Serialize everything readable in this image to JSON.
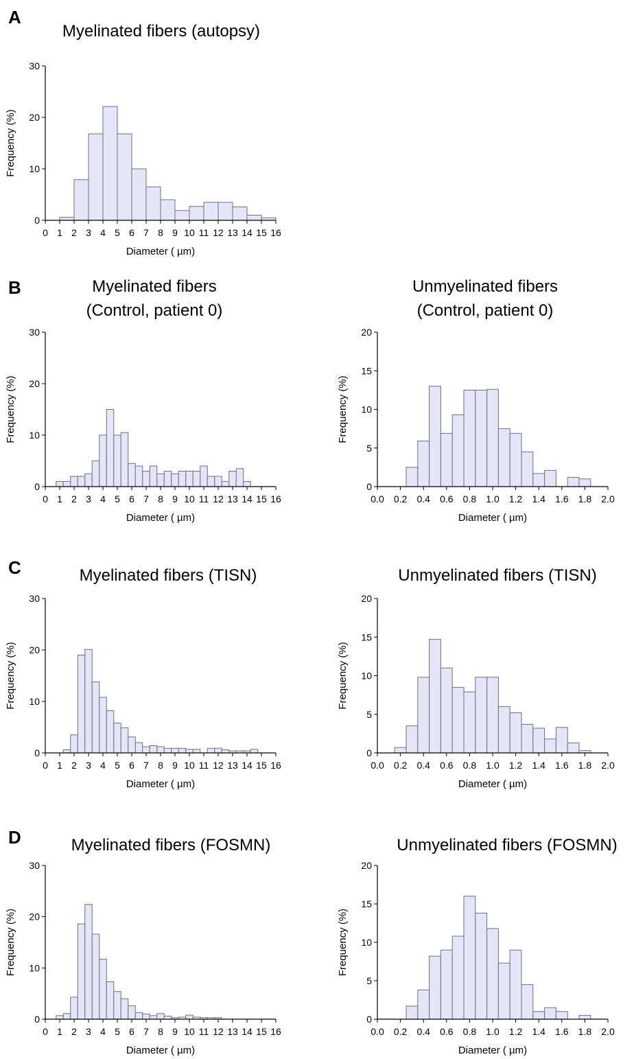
{
  "panel_labels": [
    "A",
    "B",
    "C",
    "D"
  ],
  "chart_data": [
    {
      "type": "bar",
      "panel": "A",
      "title_lines": [
        "Myelinated fibers (autopsy)"
      ],
      "xlabel": "Diameter ( µm)",
      "ylabel": "Frequency (%)",
      "xlim": [
        0,
        16
      ],
      "ylim": [
        0,
        30
      ],
      "xticks": [
        "0",
        "1",
        "2",
        "3",
        "4",
        "5",
        "6",
        "7",
        "8",
        "9",
        "10",
        "11",
        "12",
        "13",
        "14",
        "15",
        "16"
      ],
      "yticks": [
        "0",
        "10",
        "20",
        "30"
      ],
      "bin_width": 1,
      "bin_starts": [
        1,
        2,
        3,
        4,
        5,
        6,
        7,
        8,
        9,
        10,
        11,
        12,
        13,
        14,
        15
      ],
      "values": [
        0.6,
        7.9,
        16.8,
        22.1,
        16.8,
        10.0,
        6.5,
        4.0,
        1.9,
        2.7,
        3.5,
        3.5,
        2.6,
        1.0,
        0.5
      ],
      "grid": false
    },
    {
      "type": "bar",
      "panel": "B",
      "title_lines": [
        "Myelinated fibers",
        "(Control, patient 0)"
      ],
      "xlabel": "Diameter ( µm)",
      "ylabel": "Frequency (%)",
      "xlim": [
        0,
        16
      ],
      "ylim": [
        0,
        30
      ],
      "xticks": [
        "0",
        "1",
        "2",
        "3",
        "4",
        "5",
        "6",
        "7",
        "8",
        "9",
        "10",
        "11",
        "12",
        "13",
        "14",
        "15",
        "16"
      ],
      "yticks": [
        "0",
        "10",
        "20",
        "30"
      ],
      "bin_width": 0.5,
      "bin_starts": [
        0.75,
        1.25,
        1.75,
        2.25,
        2.75,
        3.25,
        3.75,
        4.25,
        4.75,
        5.25,
        5.75,
        6.25,
        6.75,
        7.25,
        7.75,
        8.25,
        8.75,
        9.25,
        9.75,
        10.25,
        10.75,
        11.25,
        11.75,
        12.25,
        12.75,
        13.25,
        13.75
      ],
      "values": [
        1.0,
        1.0,
        2.0,
        2.0,
        2.5,
        5.0,
        10.0,
        15.0,
        10.0,
        10.5,
        4.5,
        4.0,
        3.0,
        4.0,
        2.5,
        3.0,
        2.5,
        3.0,
        3.0,
        3.0,
        4.0,
        2.0,
        2.0,
        1.0,
        3.0,
        3.5,
        1.0
      ],
      "grid": false
    },
    {
      "type": "bar",
      "panel": "B",
      "title_lines": [
        "Unmyelinated fibers",
        "(Control, patient 0)"
      ],
      "xlabel": "Diameter ( µm)",
      "ylabel": "Frequency (%)",
      "xlim": [
        0,
        2.0
      ],
      "ylim": [
        0,
        20
      ],
      "xticks": [
        "0.0",
        "0.2",
        "0.4",
        "0.6",
        "0.8",
        "1.0",
        "1.2",
        "1.4",
        "1.6",
        "1.8",
        "2.0"
      ],
      "yticks": [
        "0",
        "5",
        "10",
        "15",
        "20"
      ],
      "bin_width": 0.1,
      "bin_starts": [
        0.25,
        0.35,
        0.45,
        0.55,
        0.65,
        0.75,
        0.85,
        0.95,
        1.05,
        1.15,
        1.25,
        1.35,
        1.45,
        1.55,
        1.65,
        1.75
      ],
      "values": [
        2.5,
        5.9,
        13.0,
        6.9,
        9.3,
        12.5,
        12.5,
        12.6,
        7.5,
        6.9,
        4.5,
        1.7,
        2.1,
        0,
        1.2,
        1.0
      ],
      "grid": false
    },
    {
      "type": "bar",
      "panel": "C",
      "title_lines": [
        "Myelinated fibers (TISN)"
      ],
      "xlabel": "Diameter ( µm)",
      "ylabel": "Frequency (%)",
      "xlim": [
        0,
        16
      ],
      "ylim": [
        0,
        30
      ],
      "xticks": [
        "0",
        "1",
        "2",
        "3",
        "4",
        "5",
        "6",
        "7",
        "8",
        "9",
        "10",
        "11",
        "12",
        "13",
        "14",
        "15",
        "16"
      ],
      "yticks": [
        "0",
        "10",
        "20",
        "30"
      ],
      "bin_width": 0.5,
      "bin_starts": [
        1.25,
        1.75,
        2.25,
        2.75,
        3.25,
        3.75,
        4.25,
        4.75,
        5.25,
        5.75,
        6.25,
        6.75,
        7.25,
        7.75,
        8.25,
        8.75,
        9.25,
        9.75,
        10.25,
        10.75,
        11.25,
        11.75,
        12.25,
        12.75,
        13.25,
        13.75,
        14.25
      ],
      "values": [
        0.6,
        3.5,
        19.0,
        20.1,
        13.8,
        10.8,
        8.2,
        5.8,
        4.9,
        3.1,
        2.0,
        1.2,
        1.4,
        1.2,
        0.9,
        0.9,
        0.9,
        0.7,
        0.7,
        0,
        0.9,
        0.9,
        0.6,
        0.4,
        0.4,
        0.4,
        0.7
      ],
      "grid": false
    },
    {
      "type": "bar",
      "panel": "C",
      "title_lines": [
        "Unmyelinated fibers (TISN)"
      ],
      "xlabel": "Diameter ( µm)",
      "ylabel": "Frequency (%)",
      "xlim": [
        0,
        2.0
      ],
      "ylim": [
        0,
        20
      ],
      "xticks": [
        "0.0",
        "0.2",
        "0.4",
        "0.6",
        "0.8",
        "1.0",
        "1.2",
        "1.4",
        "1.6",
        "1.8",
        "2.0"
      ],
      "yticks": [
        "0",
        "5",
        "10",
        "15",
        "20"
      ],
      "bin_width": 0.1,
      "bin_starts": [
        0.15,
        0.25,
        0.35,
        0.45,
        0.55,
        0.65,
        0.75,
        0.85,
        0.95,
        1.05,
        1.15,
        1.25,
        1.35,
        1.45,
        1.55,
        1.65,
        1.75
      ],
      "values": [
        0.7,
        3.5,
        9.8,
        14.7,
        11.0,
        8.5,
        7.9,
        9.8,
        9.8,
        6.0,
        5.2,
        3.7,
        3.2,
        1.8,
        3.3,
        1.3,
        0.3
      ],
      "grid": false
    },
    {
      "type": "bar",
      "panel": "D",
      "title_lines": [
        "Myelinated fibers (FOSMN)"
      ],
      "xlabel": "Diameter ( µm)",
      "ylabel": "Frequency (%)",
      "xlim": [
        0,
        16
      ],
      "ylim": [
        0,
        30
      ],
      "xticks": [
        "0",
        "1",
        "2",
        "3",
        "4",
        "5",
        "6",
        "7",
        "8",
        "9",
        "10",
        "11",
        "12",
        "13",
        "14",
        "15",
        "16"
      ],
      "yticks": [
        "0",
        "10",
        "20",
        "30"
      ],
      "bin_width": 0.5,
      "bin_starts": [
        0.75,
        1.25,
        1.75,
        2.25,
        2.75,
        3.25,
        3.75,
        4.25,
        4.75,
        5.25,
        5.75,
        6.25,
        6.75,
        7.25,
        7.75,
        8.25,
        8.75,
        9.25,
        9.75,
        10.25,
        10.75,
        11.25,
        11.75
      ],
      "values": [
        0.7,
        1.1,
        4.3,
        18.6,
        22.4,
        16.6,
        11.7,
        7.3,
        5.4,
        4.0,
        2.6,
        1.3,
        1.0,
        0.7,
        1.1,
        0.6,
        0.3,
        0.4,
        0.8,
        0.4,
        0.3,
        0.3,
        0.3
      ],
      "grid": false
    },
    {
      "type": "bar",
      "panel": "D",
      "title_lines": [
        "Unmyelinated fibers (FOSMN)"
      ],
      "xlabel": "Diameter ( µm)",
      "ylabel": "Frequency (%)",
      "xlim": [
        0,
        2.0
      ],
      "ylim": [
        0,
        20
      ],
      "xticks": [
        "0.0",
        "0.2",
        "0.4",
        "0.6",
        "0.8",
        "1.0",
        "1.2",
        "1.4",
        "1.6",
        "1.8",
        "2.0"
      ],
      "yticks": [
        "0",
        "5",
        "10",
        "15",
        "20"
      ],
      "bin_width": 0.1,
      "bin_starts": [
        0.25,
        0.35,
        0.45,
        0.55,
        0.65,
        0.75,
        0.85,
        0.95,
        1.05,
        1.15,
        1.25,
        1.35,
        1.45,
        1.55,
        1.65,
        1.75
      ],
      "values": [
        1.7,
        3.8,
        8.2,
        9.0,
        10.8,
        16.0,
        13.8,
        11.8,
        7.3,
        9.0,
        4.5,
        1.0,
        1.5,
        1.0,
        0,
        0.5
      ],
      "grid": false
    }
  ],
  "colors": {
    "bar_fill": "#e4e6f8",
    "bar_stroke": "#6e6e80",
    "axis": "#000000"
  }
}
